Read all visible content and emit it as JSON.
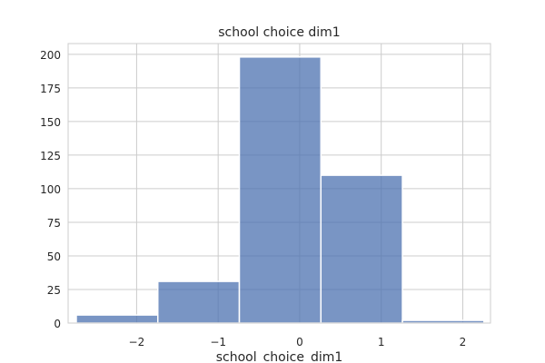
{
  "chart_data": {
    "type": "bar",
    "title": "school choice dim1",
    "xlabel": "school_choice_dim1",
    "ylabel": "",
    "xlim": [
      -2.84,
      2.34
    ],
    "ylim": [
      0,
      208
    ],
    "grid": true,
    "bar_color": "#4c72b0",
    "bins": [
      {
        "x0": -2.74,
        "x1": -1.74,
        "count": 6
      },
      {
        "x0": -1.74,
        "x1": -0.74,
        "count": 31
      },
      {
        "x0": -0.74,
        "x1": 0.26,
        "count": 198
      },
      {
        "x0": 0.26,
        "x1": 1.26,
        "count": 110
      },
      {
        "x0": 1.26,
        "x1": 2.26,
        "count": 2
      }
    ],
    "x_ticks": [
      {
        "value": -2,
        "label": "−2"
      },
      {
        "value": -1,
        "label": "−1"
      },
      {
        "value": 0,
        "label": "0"
      },
      {
        "value": 1,
        "label": "1"
      },
      {
        "value": 2,
        "label": "2"
      }
    ],
    "y_ticks": [
      {
        "value": 0,
        "label": "0"
      },
      {
        "value": 25,
        "label": "25"
      },
      {
        "value": 50,
        "label": "50"
      },
      {
        "value": 75,
        "label": "75"
      },
      {
        "value": 100,
        "label": "100"
      },
      {
        "value": 125,
        "label": "125"
      },
      {
        "value": 150,
        "label": "150"
      },
      {
        "value": 175,
        "label": "175"
      },
      {
        "value": 200,
        "label": "200"
      }
    ]
  }
}
